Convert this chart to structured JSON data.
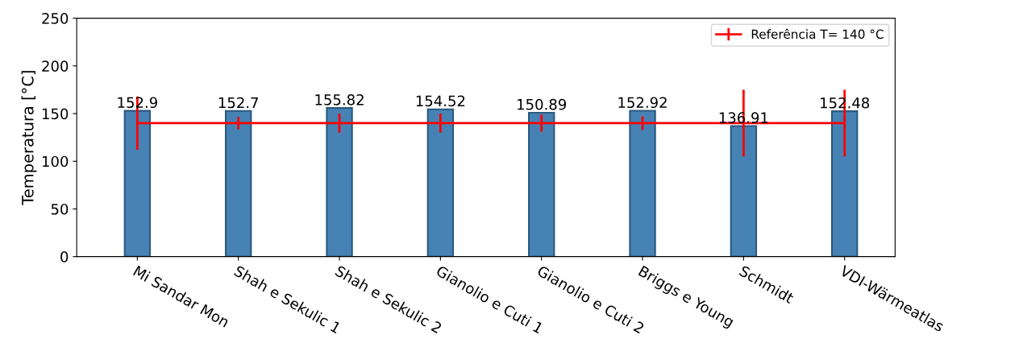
{
  "chart_data": {
    "type": "bar",
    "ylabel": "Temperatura [°C]",
    "categories": [
      "Mi Sandar Mon",
      "Shah e Sekulic 1",
      "Shah e Sekulic 2",
      "Gianolio e Cuti 1",
      "Gianolio e Cuti 2",
      "Briggs e Young",
      "Schmidt",
      "VDI-Wärmeatlas"
    ],
    "series": [
      {
        "color": "#4682b4",
        "values": [
          152.9,
          152.7,
          155.82,
          154.52,
          150.89,
          152.92,
          136.91,
          152.48
        ],
        "data_labels": true
      },
      {
        "type": "line",
        "name": "Referência T= 140 °C",
        "color": "#ff0000",
        "values": [
          140,
          140,
          140,
          140,
          140,
          140,
          140,
          140
        ],
        "errors": [
          28,
          6.5,
          10,
          10,
          9,
          7,
          35,
          35
        ]
      }
    ],
    "ylim": [
      0,
      250
    ],
    "yticks": [
      0,
      50,
      100,
      150,
      200,
      250
    ],
    "legend": "top right",
    "grid": false
  }
}
